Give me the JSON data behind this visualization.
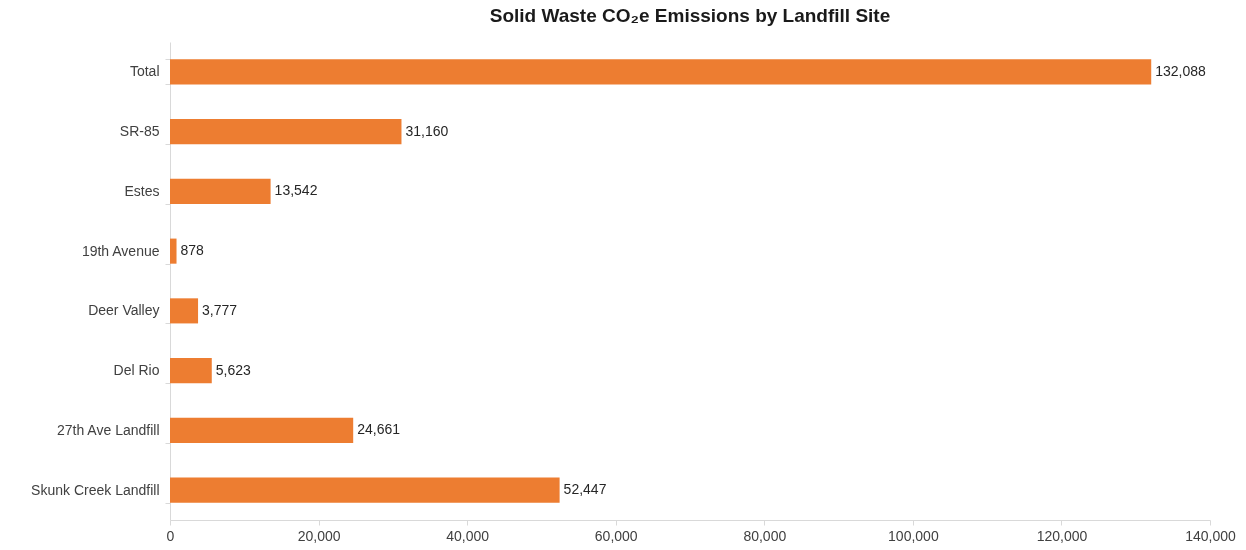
{
  "chart_data": {
    "type": "bar",
    "orientation": "horizontal",
    "title": "Solid Waste CO₂e Emissions by Landfill Site",
    "categories": [
      "Total",
      "SR-85",
      "Estes",
      "19th Avenue",
      "Deer Valley",
      "Del Rio",
      "27th Ave Landfill",
      "Skunk Creek Landfill"
    ],
    "values": [
      132088,
      31160,
      13542,
      878,
      3777,
      5623,
      24661,
      52447
    ],
    "value_labels": [
      "132,088",
      "31,160",
      "13,542",
      "878",
      "3,777",
      "5,623",
      "24,661",
      "52,447"
    ],
    "color": "#ed7d31",
    "xlim": [
      0,
      140000
    ],
    "xticks": [
      {
        "value": 0,
        "label": "0"
      },
      {
        "value": 20000,
        "label": "20,000"
      },
      {
        "value": 40000,
        "label": "40,000"
      },
      {
        "value": 60000,
        "label": "60,000"
      },
      {
        "value": 80000,
        "label": "80,000"
      },
      {
        "value": 100000,
        "label": "100,000"
      },
      {
        "value": 120000,
        "label": "120,000"
      },
      {
        "value": 140000,
        "label": "140,000"
      }
    ]
  }
}
